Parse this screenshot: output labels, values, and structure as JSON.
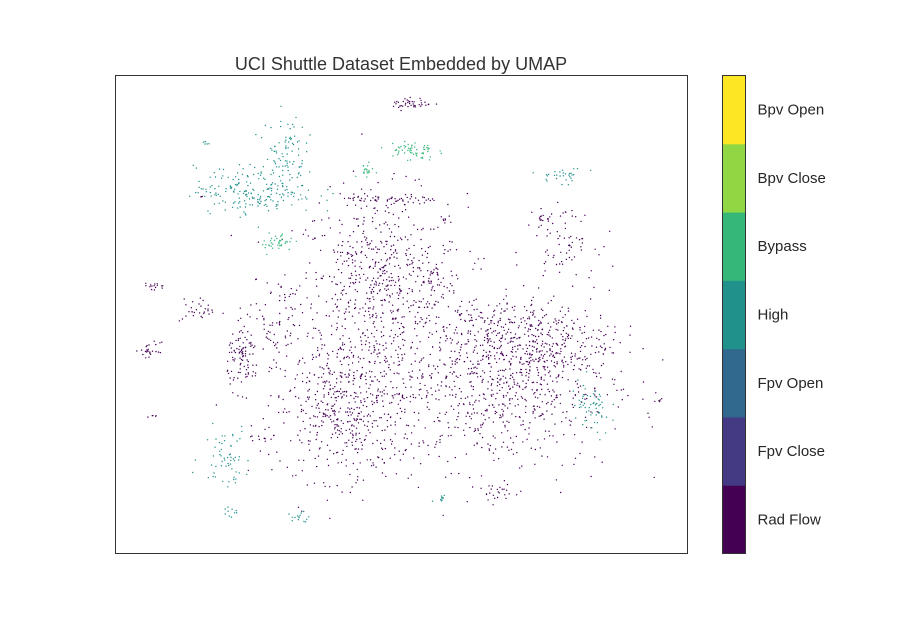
{
  "chart_data": {
    "type": "scatter",
    "title": "UCI Shuttle Dataset Embedded by UMAP",
    "xlabel": "",
    "ylabel": "",
    "xlim": [
      0,
      20
    ],
    "ylim": [
      0,
      16
    ],
    "ticks_visible": false,
    "grid": false,
    "legend": "colorbar-right",
    "classes": [
      {
        "name": "Rad Flow",
        "color": "#440154"
      },
      {
        "name": "Fpv Close",
        "color": "#443983"
      },
      {
        "name": "Fpv Open",
        "color": "#31688e"
      },
      {
        "name": "High",
        "color": "#21918c"
      },
      {
        "name": "Bypass",
        "color": "#35b779"
      },
      {
        "name": "Bpv Close",
        "color": "#90d743"
      },
      {
        "name": "Bpv Open",
        "color": "#fde725"
      }
    ],
    "clusters": [
      {
        "class": "Rad Flow",
        "x": 9.27,
        "y": 8.8,
        "sx": 1.5,
        "sy": 1.6,
        "n": 700
      },
      {
        "class": "Rad Flow",
        "x": 8.04,
        "y": 4.79,
        "sx": 1.2,
        "sy": 1.15,
        "n": 500
      },
      {
        "class": "Rad Flow",
        "x": 13.46,
        "y": 5.79,
        "sx": 1.9,
        "sy": 1.5,
        "n": 800
      },
      {
        "class": "Rad Flow",
        "x": 14.51,
        "y": 7.13,
        "sx": 1.4,
        "sy": 0.65,
        "n": 300
      },
      {
        "class": "High",
        "x": 4.9,
        "y": 12.15,
        "sx": 1.05,
        "sy": 0.4,
        "n": 200
      },
      {
        "class": "High",
        "x": 5.94,
        "y": 13.49,
        "sx": 0.35,
        "sy": 0.6,
        "n": 80
      },
      {
        "class": "Bypass",
        "x": 10.31,
        "y": 13.49,
        "sx": 0.42,
        "sy": 0.17,
        "n": 60
      },
      {
        "class": "Rad Flow",
        "x": 10.38,
        "y": 15.06,
        "sx": 0.35,
        "sy": 0.1,
        "n": 40
      },
      {
        "class": "Rad Flow",
        "x": 9.61,
        "y": 11.82,
        "sx": 0.87,
        "sy": 0.1,
        "n": 60
      },
      {
        "class": "Bypass",
        "x": 5.66,
        "y": 10.41,
        "sx": 0.28,
        "sy": 0.17,
        "n": 40
      },
      {
        "class": "Rad Flow",
        "x": 4.48,
        "y": 6.56,
        "sx": 0.28,
        "sy": 0.5,
        "n": 100
      },
      {
        "class": "High",
        "x": 16.61,
        "y": 4.79,
        "sx": 0.35,
        "sy": 0.5,
        "n": 60
      },
      {
        "class": "High",
        "x": 3.85,
        "y": 3.28,
        "sx": 0.42,
        "sy": 0.5,
        "n": 60
      },
      {
        "class": "Rad Flow",
        "x": 15.73,
        "y": 10.48,
        "sx": 0.52,
        "sy": 0.5,
        "n": 60
      },
      {
        "class": "Rad Flow",
        "x": 1.22,
        "y": 6.8,
        "sx": 0.17,
        "sy": 0.13,
        "n": 25
      },
      {
        "class": "Rad Flow",
        "x": 2.97,
        "y": 8.13,
        "sx": 0.35,
        "sy": 0.2,
        "n": 30
      },
      {
        "class": "High",
        "x": 15.63,
        "y": 12.65,
        "sx": 0.42,
        "sy": 0.13,
        "n": 30
      },
      {
        "class": "Bypass",
        "x": 8.74,
        "y": 12.82,
        "sx": 0.14,
        "sy": 0.1,
        "n": 20
      },
      {
        "class": "Rad Flow",
        "x": 13.29,
        "y": 2.04,
        "sx": 0.35,
        "sy": 0.17,
        "n": 20
      },
      {
        "class": "Rad Flow",
        "x": 5.59,
        "y": 7.63,
        "sx": 0.42,
        "sy": 0.84,
        "n": 60
      },
      {
        "class": "Rad Flow",
        "x": 1.4,
        "y": 8.94,
        "sx": 0.21,
        "sy": 0.07,
        "n": 15
      },
      {
        "class": "High",
        "x": 6.29,
        "y": 1.17,
        "sx": 0.28,
        "sy": 0.1,
        "n": 15
      },
      {
        "class": "High",
        "x": 4.02,
        "y": 1.37,
        "sx": 0.17,
        "sy": 0.1,
        "n": 10
      },
      {
        "class": "Rad Flow",
        "x": 5.24,
        "y": 3.95,
        "sx": 0.28,
        "sy": 0.17,
        "n": 15
      },
      {
        "class": "Rad Flow",
        "x": 9.97,
        "y": 5.29,
        "sx": 0.28,
        "sy": 0.07,
        "n": 10
      },
      {
        "class": "Rad Flow",
        "x": 11.19,
        "y": 9.14,
        "sx": 0.17,
        "sy": 0.17,
        "n": 15
      },
      {
        "class": "Rad Flow",
        "x": 15.03,
        "y": 11.15,
        "sx": 0.21,
        "sy": 0.17,
        "n": 20
      },
      {
        "class": "High",
        "x": 11.36,
        "y": 1.87,
        "sx": 0.1,
        "sy": 0.1,
        "n": 10
      },
      {
        "class": "Rad Flow",
        "x": 18.99,
        "y": 5.12,
        "sx": 0.07,
        "sy": 0.05,
        "n": 5
      },
      {
        "class": "Rad Flow",
        "x": 1.29,
        "y": 4.62,
        "sx": 0.1,
        "sy": 0.07,
        "n": 5
      },
      {
        "class": "High",
        "x": 3.15,
        "y": 13.72,
        "sx": 0.1,
        "sy": 0.05,
        "n": 5
      },
      {
        "class": "Rad Flow",
        "x": 2.97,
        "y": 11.92,
        "sx": 0.05,
        "sy": 0.05,
        "n": 3
      }
    ]
  }
}
